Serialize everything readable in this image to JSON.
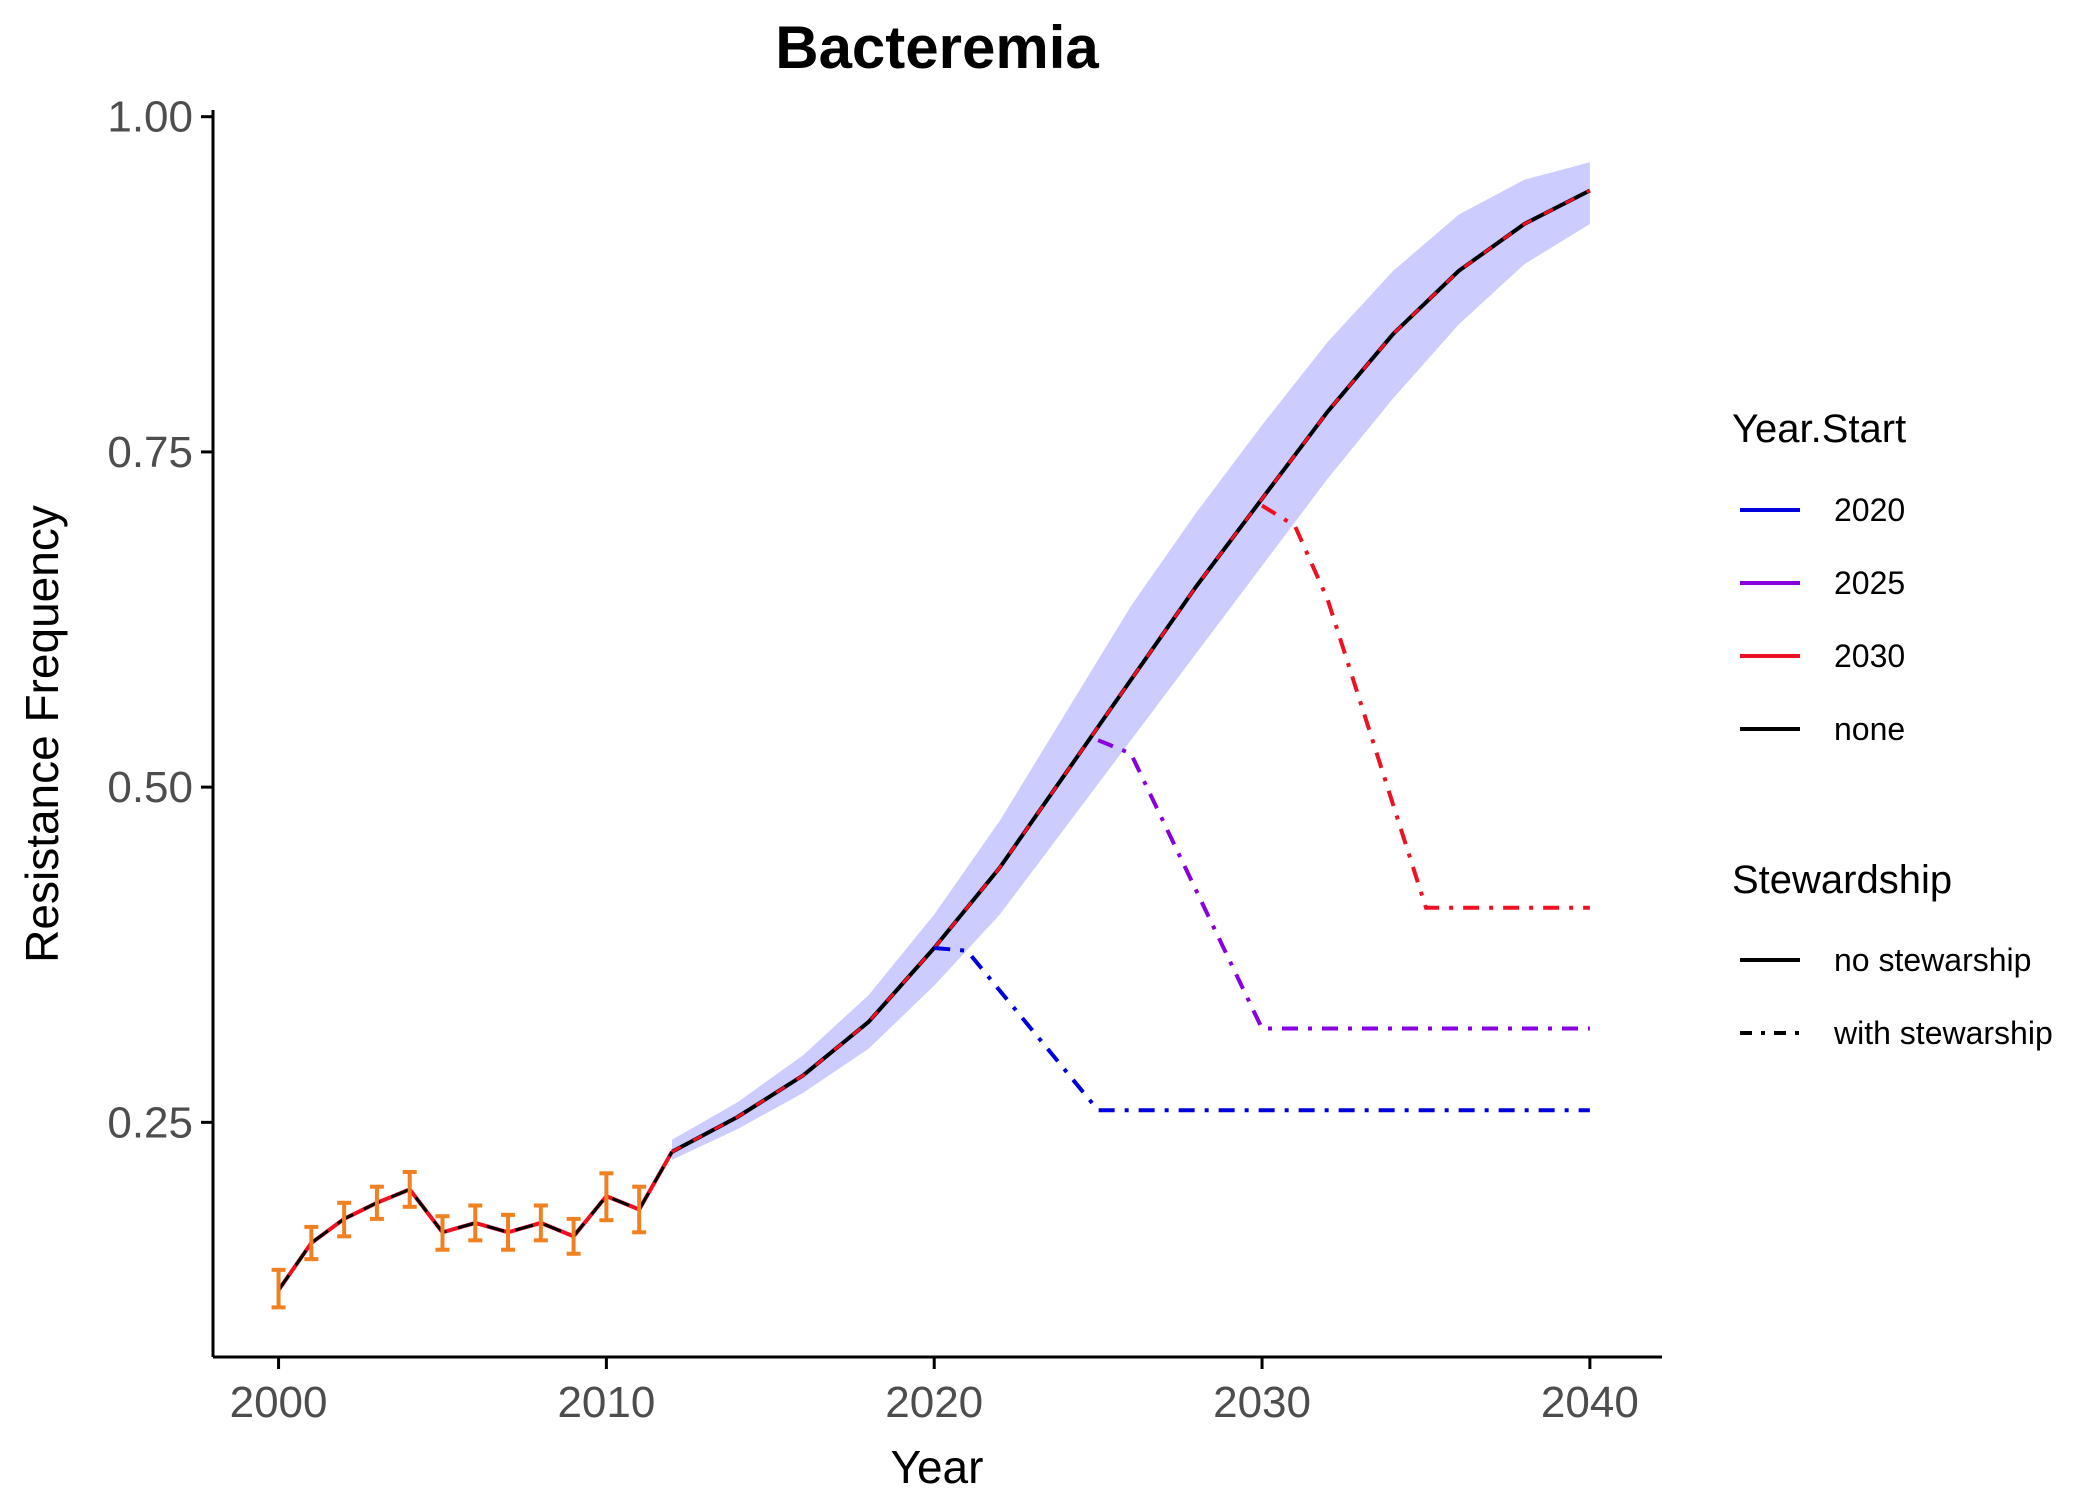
{
  "chart_data": {
    "type": "line",
    "title": "Bacteremia",
    "xlabel": "Year",
    "ylabel": "Resistance Frequency",
    "xlim": [
      1998,
      2042.2
    ],
    "ylim": [
      0.075,
      1.005
    ],
    "x_ticks": [
      2000,
      2010,
      2020,
      2030,
      2040
    ],
    "x_tick_labels": [
      "2000",
      "2010",
      "2020",
      "2030",
      "2040"
    ],
    "y_ticks": [
      0.25,
      0.5,
      0.75,
      1.0
    ],
    "y_tick_labels": [
      "0.25",
      "0.50",
      "0.75",
      "1.00"
    ],
    "grid": false,
    "colors": {
      "band": "#ccccff",
      "none": "#000000",
      "y2020": "#0000dd",
      "y2025": "#8800dd",
      "y2030": "#ee1122",
      "errorbar": "#f08020"
    },
    "observed": {
      "x": [
        2000,
        2001,
        2002,
        2003,
        2004,
        2005,
        2006,
        2007,
        2008,
        2009,
        2010,
        2011
      ],
      "y": [
        0.125,
        0.16,
        0.178,
        0.19,
        0.2,
        0.168,
        0.175,
        0.168,
        0.175,
        0.165,
        0.195,
        0.185
      ],
      "lower": [
        0.112,
        0.148,
        0.165,
        0.178,
        0.187,
        0.155,
        0.162,
        0.155,
        0.162,
        0.152,
        0.177,
        0.168
      ],
      "upper": [
        0.14,
        0.172,
        0.19,
        0.202,
        0.213,
        0.18,
        0.188,
        0.181,
        0.188,
        0.178,
        0.212,
        0.202
      ]
    },
    "baseline": {
      "x": [
        2012,
        2014,
        2016,
        2018,
        2020,
        2022,
        2024,
        2026,
        2028,
        2030,
        2032,
        2034,
        2036,
        2038,
        2040
      ],
      "y": [
        0.228,
        0.254,
        0.285,
        0.325,
        0.38,
        0.44,
        0.51,
        0.58,
        0.65,
        0.715,
        0.78,
        0.838,
        0.885,
        0.92,
        0.945
      ]
    },
    "band": {
      "x": [
        2012,
        2014,
        2016,
        2018,
        2020,
        2022,
        2024,
        2026,
        2028,
        2030,
        2032,
        2034,
        2036,
        2038,
        2040
      ],
      "lower": [
        0.222,
        0.245,
        0.272,
        0.305,
        0.352,
        0.405,
        0.47,
        0.535,
        0.6,
        0.665,
        0.73,
        0.79,
        0.845,
        0.89,
        0.92
      ],
      "upper": [
        0.237,
        0.265,
        0.3,
        0.345,
        0.405,
        0.475,
        0.555,
        0.635,
        0.705,
        0.77,
        0.832,
        0.885,
        0.927,
        0.953,
        0.966
      ]
    },
    "series": [
      {
        "year_start": "2020",
        "x": [
          2020,
          2021,
          2025,
          2040
        ],
        "y": [
          0.38,
          0.378,
          0.259,
          0.259
        ]
      },
      {
        "year_start": "2025",
        "x": [
          2025,
          2026,
          2030,
          2040
        ],
        "y": [
          0.535,
          0.525,
          0.32,
          0.32
        ]
      },
      {
        "year_start": "2030",
        "x": [
          2030,
          2031,
          2032,
          2035,
          2040
        ],
        "y": [
          0.71,
          0.695,
          0.64,
          0.41,
          0.41
        ]
      }
    ],
    "legend": {
      "placement": "right",
      "year_start_title": "Year.Start",
      "year_start_items": [
        {
          "label": "2020",
          "color": "#0000dd"
        },
        {
          "label": "2025",
          "color": "#8800dd"
        },
        {
          "label": "2030",
          "color": "#ee1122"
        },
        {
          "label": "none",
          "color": "#000000"
        }
      ],
      "stewardship_title": "Stewardship",
      "stewardship_items": [
        {
          "label": "no stewarship",
          "style": "solid"
        },
        {
          "label": "with stewarship",
          "style": "dotdash"
        }
      ]
    }
  }
}
